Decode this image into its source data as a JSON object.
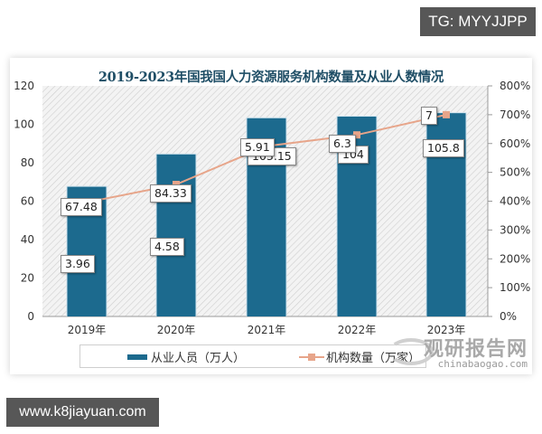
{
  "watermarks": {
    "top_right": "TG: MYYJJPP",
    "bottom_left": "www.k8jiayuan.com",
    "logo_cn": "观研报告网",
    "logo_en": "chinabaogao.com"
  },
  "chart_data": {
    "type": "bar",
    "title": "2019-2023年国我国人力资源服务机构数量及从业人数情况",
    "categories": [
      "2019年",
      "2020年",
      "2021年",
      "2022年",
      "2023年"
    ],
    "series": [
      {
        "name": "从业人员（万人）",
        "type": "bar",
        "axis": "left",
        "color": "#1c6a8e",
        "values": [
          67.48,
          84.33,
          103.15,
          104,
          105.8
        ],
        "labels": [
          "67.48",
          "84.33",
          "103.15",
          "104",
          "105.8"
        ]
      },
      {
        "name": "机构数量（万家）",
        "type": "line",
        "axis": "right",
        "color": "#e7a58a",
        "values": [
          3.96,
          4.58,
          5.91,
          6.3,
          7
        ],
        "labels": [
          "3.96",
          "4.58",
          "5.91",
          "6.3",
          "7"
        ]
      }
    ],
    "y_left": {
      "ticks": [
        "0",
        "20",
        "40",
        "60",
        "80",
        "100",
        "120"
      ],
      "range": [
        0,
        120
      ]
    },
    "y_right": {
      "ticks": [
        "0%",
        "100%",
        "200%",
        "300%",
        "400%",
        "500%",
        "600%",
        "700%",
        "800%"
      ],
      "range": [
        0,
        800
      ]
    },
    "xlabel": "",
    "ylabel": "",
    "grid": false,
    "legend_position": "bottom"
  }
}
